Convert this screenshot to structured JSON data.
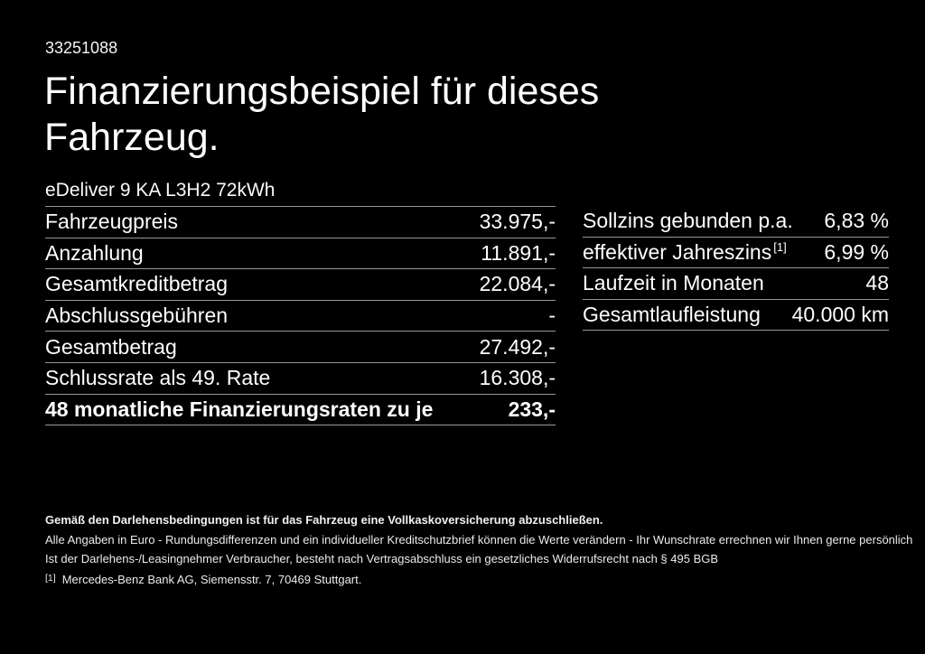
{
  "header": {
    "vehicle_id": "33251088",
    "title": "Finanzierungsbeispiel für dieses\nFahrzeug.",
    "vehicle_name": "eDeliver 9 KA L3H2 72kWh"
  },
  "left_table": {
    "rows": [
      {
        "label": "Fahrzeugpreis",
        "value": "33.975,-"
      },
      {
        "label": "Anzahlung",
        "value": "11.891,-"
      },
      {
        "label": "Gesamtkreditbetrag",
        "value": "22.084,-"
      },
      {
        "label": "Abschlussgebühren",
        "value": "-"
      },
      {
        "label": "Gesamtbetrag",
        "value": "27.492,-"
      },
      {
        "label": "Schlussrate als 49. Rate",
        "value": "16.308,-"
      },
      {
        "label": "48 monatliche Finanzierungsraten zu je",
        "value": "233,-"
      }
    ]
  },
  "right_table": {
    "rows": [
      {
        "label": "Sollzins gebunden p.a.",
        "sup": "",
        "value": "6,83 %"
      },
      {
        "label": "effektiver Jahreszins",
        "sup": "[1]",
        "value": "6,99 %"
      },
      {
        "label": "Laufzeit in Monaten",
        "sup": "",
        "value": "48"
      },
      {
        "label": "Gesamtlaufleistung",
        "sup": "",
        "value": "40.000 km"
      }
    ]
  },
  "footer": {
    "bold_note": "Gemäß den Darlehensbedingungen ist für das Fahrzeug eine Vollkaskoversicherung abzuschließen.",
    "note_line1": "Alle Angaben in Euro - Rundungsdifferenzen und ein individueller Kreditschutzbrief können die Werte verändern - Ihr Wunschrate errechnen wir Ihnen gerne persönlich",
    "note_line2": "Ist der Darlehens-/Leasingnehmer Verbraucher, besteht nach Vertragsabschluss ein gesetzliches Widerrufsrecht nach § 495 BGB",
    "footnote_marker": "[1]",
    "footnote_text": "Mercedes-Benz Bank AG, Siemensstr. 7, 70469 Stuttgart."
  },
  "colors": {
    "background": "#000000",
    "text": "#ffffff",
    "divider": "#979797"
  }
}
